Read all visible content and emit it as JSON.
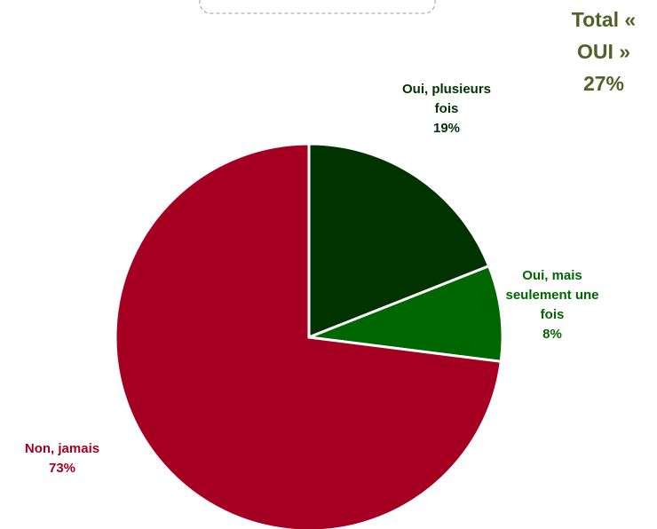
{
  "chart_data": {
    "type": "pie",
    "categories": [
      "Oui, plusieurs fois",
      "Oui, mais seulement une fois",
      "Non, jamais"
    ],
    "values": [
      19,
      8,
      73
    ],
    "value_labels": [
      "19%",
      "8%",
      "73%"
    ],
    "colors": [
      "#003300",
      "#006600",
      "#a50021"
    ],
    "annotation": "Total « OUI » 27%"
  }
}
